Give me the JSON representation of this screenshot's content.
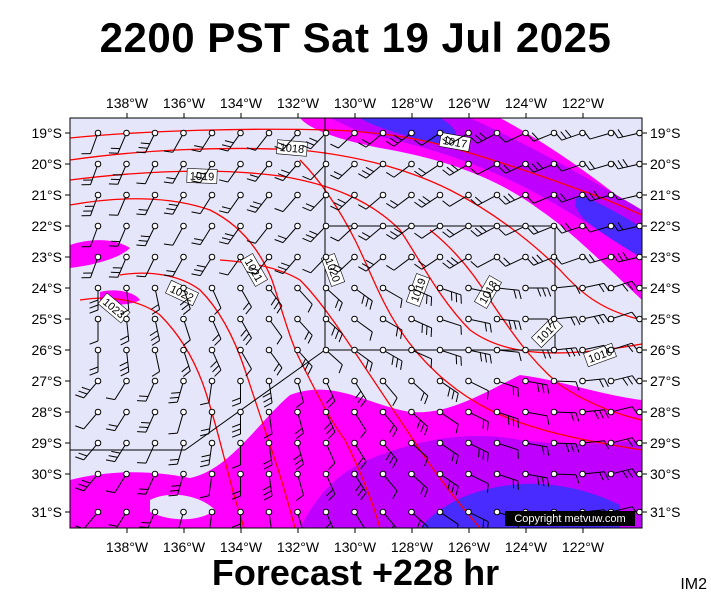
{
  "header": {
    "title": "2200 PST Sat 19 Jul 2025"
  },
  "footer": {
    "forecast": "Forecast +228 hr",
    "tag": "IM2"
  },
  "copyright": "Copyright metvuw.com",
  "colors": {
    "ocean": "#e6e6fa",
    "precip_light": "#ff00ff",
    "precip_med": "#c000ff",
    "precip_heavy": "#4a2bff",
    "isobar": "#ff0000"
  },
  "map": {
    "lon_labels": [
      "138°W",
      "136°W",
      "134°W",
      "132°W",
      "130°W",
      "128°W",
      "126°W",
      "124°W",
      "122°W"
    ],
    "lat_labels": [
      "19°S",
      "20°S",
      "21°S",
      "22°S",
      "23°S",
      "24°S",
      "25°S",
      "26°S",
      "27°S",
      "28°S",
      "29°S",
      "30°S",
      "31°S"
    ],
    "isobar_labels": [
      "1017",
      "1018",
      "1019",
      "1021",
      "1020",
      "1019",
      "1018",
      "1017",
      "1016",
      "1022",
      "1023"
    ]
  }
}
